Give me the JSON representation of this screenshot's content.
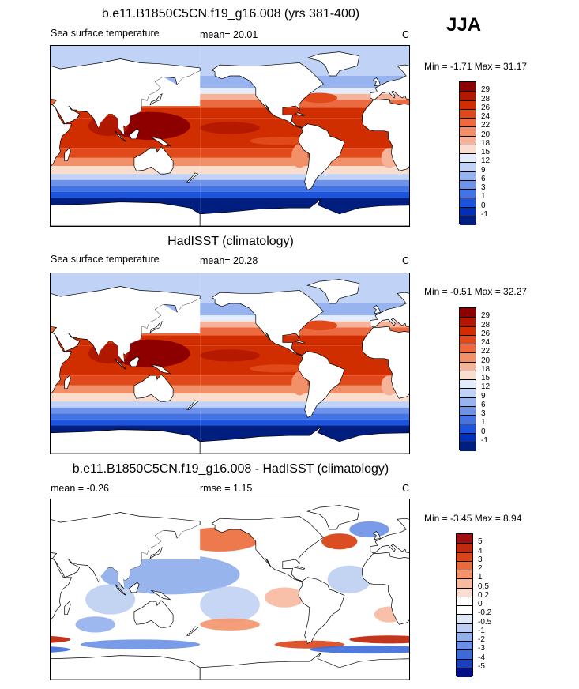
{
  "season": "JJA",
  "panels": [
    {
      "title": "b.e11.B1850C5CN.f19_g16.008 (yrs 381-400)",
      "left_label": "Sea surface temperature",
      "center_label": "mean=  20.01",
      "units": "C",
      "stats": "Min =  -1.71 Max =  31.17",
      "field": "abs",
      "levels": [
        "29",
        "28",
        "26",
        "24",
        "22",
        "20",
        "18",
        "15",
        "12",
        "9",
        "6",
        "3",
        "1",
        "0",
        "-1"
      ],
      "colors": [
        "#8e0000",
        "#b11800",
        "#d02e00",
        "#e04a1b",
        "#ec6a40",
        "#f2906a",
        "#f6b39a",
        "#fbddce",
        "#e3ecfb",
        "#c0d3f6",
        "#98b4f0",
        "#6e92ea",
        "#4474e4",
        "#1c54dc",
        "#0030b8",
        "#001d80"
      ]
    },
    {
      "title": "HadISST (climatology)",
      "left_label": "Sea surface temperature",
      "center_label": "mean=  20.28",
      "units": "C",
      "stats": "Min =  -0.51 Max =  32.27",
      "field": "abs",
      "levels": [
        "29",
        "28",
        "26",
        "24",
        "22",
        "20",
        "18",
        "15",
        "12",
        "9",
        "6",
        "3",
        "1",
        "0",
        "-1"
      ],
      "colors": [
        "#8e0000",
        "#b11800",
        "#d02e00",
        "#e04a1b",
        "#ec6a40",
        "#f2906a",
        "#f6b39a",
        "#fbddce",
        "#e3ecfb",
        "#c0d3f6",
        "#98b4f0",
        "#6e92ea",
        "#4474e4",
        "#1c54dc",
        "#0030b8",
        "#001d80"
      ]
    },
    {
      "title": "b.e11.B1850C5CN.f19_g16.008 - HadISST (climatology)",
      "left_label": "mean =  -0.26",
      "center_label": "rmse =   1.15",
      "units": "C",
      "stats": "Min =  -3.45 Max =   8.94",
      "field": "diff",
      "levels": [
        "5",
        "4",
        "3",
        "2",
        "1",
        "0.5",
        "0.2",
        "0",
        "-0.2",
        "-0.5",
        "-1",
        "-2",
        "-3",
        "-4",
        "-5"
      ],
      "colors": [
        "#a01010",
        "#c02a10",
        "#d94418",
        "#eb6a3a",
        "#f4946c",
        "#f8b9a0",
        "#fcdccf",
        "#ffffff",
        "#ffffff",
        "#dfe8f8",
        "#bccff2",
        "#92b0ec",
        "#6a90e6",
        "#3c6ad8",
        "#1840c0",
        "#000e88"
      ]
    }
  ]
}
